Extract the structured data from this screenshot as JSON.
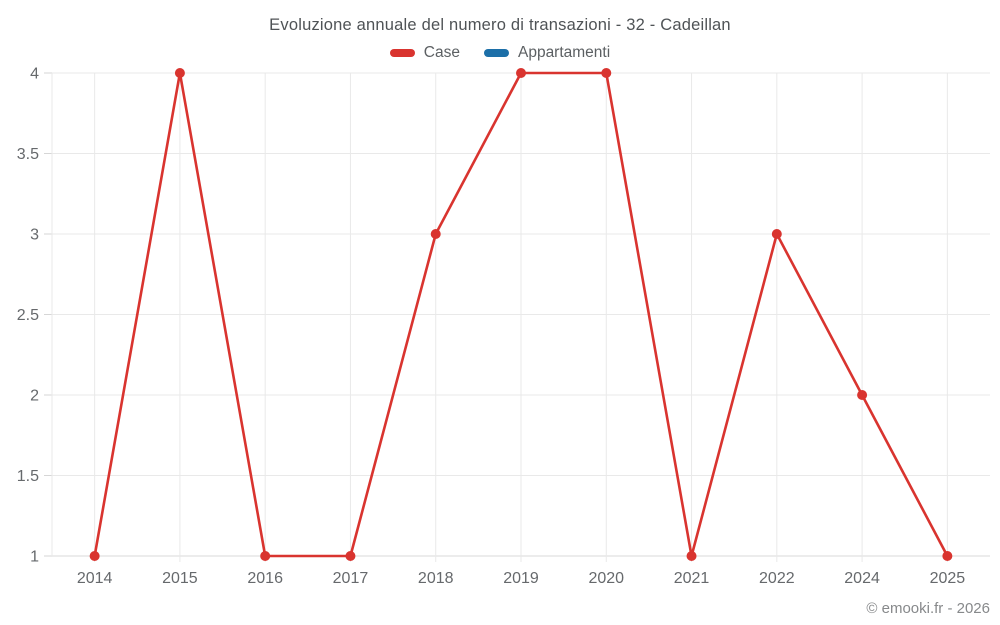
{
  "page": {
    "copyright": "© emooki.fr - 2026"
  },
  "chart_data": {
    "type": "line",
    "title": "Evoluzione annuale del numero di transazioni - 32 - Cadeillan",
    "categories": [
      "2014",
      "2015",
      "2016",
      "2017",
      "2018",
      "2019",
      "2020",
      "2021",
      "2022",
      "2024",
      "2025"
    ],
    "series": [
      {
        "name": "Case",
        "color": "#d9342f",
        "values": [
          1,
          4,
          1,
          1,
          3,
          4,
          4,
          1,
          3,
          2,
          1
        ]
      },
      {
        "name": "Appartamenti",
        "color": "#1c6fa8",
        "values": []
      }
    ],
    "xlabel": "",
    "ylabel": "",
    "ylim": [
      1,
      4
    ],
    "yticks": [
      1,
      1.5,
      2,
      2.5,
      3,
      3.5,
      4
    ],
    "grid": true,
    "legend_position": "top",
    "colors": {
      "gridline": "#e9e9e9",
      "baseline": "#d8d8d8",
      "tick": "#d6d6d6",
      "axis_label": "#66696c"
    }
  }
}
